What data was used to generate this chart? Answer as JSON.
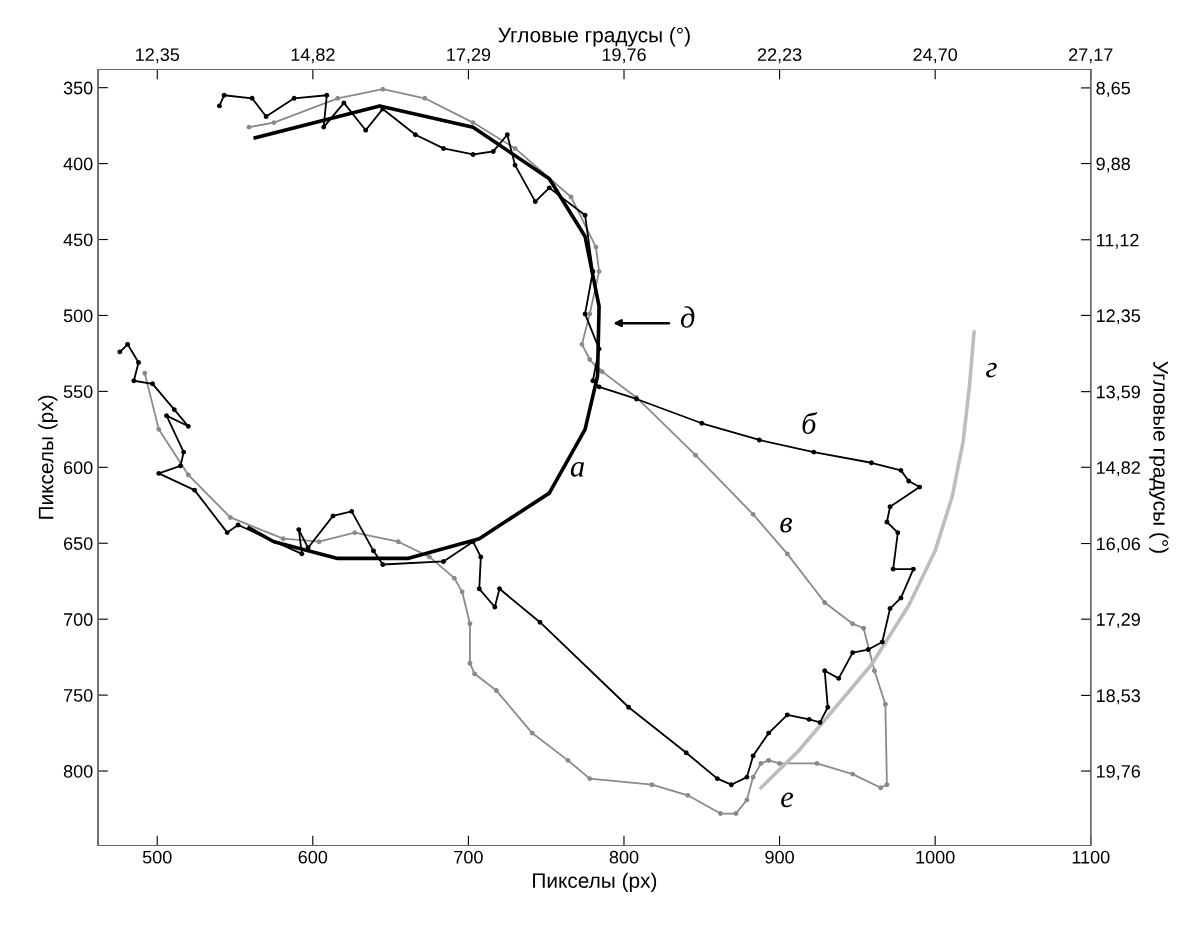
{
  "chart_data": {
    "type": "line",
    "xlabel": "Пикселы (px)",
    "ylabel": "Пикселы (px)",
    "x2label": "Угловые градусы (°)",
    "y2label": "Угловые градусы (°)",
    "xlim": [
      462,
      1100
    ],
    "xticks": [
      500,
      600,
      700,
      800,
      900,
      1000,
      1100
    ],
    "ylim": [
      849,
      338
    ],
    "yticks": [
      350,
      400,
      450,
      500,
      550,
      600,
      650,
      700,
      750,
      800
    ],
    "x2lim": [
      11.41,
      27.17
    ],
    "x2ticks": [
      {
        "value": 12.35,
        "label": "12,35"
      },
      {
        "value": 14.82,
        "label": "14,82"
      },
      {
        "value": 17.29,
        "label": "17,29"
      },
      {
        "value": 19.76,
        "label": "19,76"
      },
      {
        "value": 22.23,
        "label": "22,23"
      },
      {
        "value": 24.7,
        "label": "24,70"
      },
      {
        "value": 27.17,
        "label": "27,17"
      }
    ],
    "y2lim": [
      20.97,
      8.35
    ],
    "y2ticks": [
      {
        "value": 8.65,
        "label": "8,65"
      },
      {
        "value": 9.88,
        "label": "9,88"
      },
      {
        "value": 11.12,
        "label": "11,12"
      },
      {
        "value": 12.35,
        "label": "12,35"
      },
      {
        "value": 13.59,
        "label": "13,59"
      },
      {
        "value": 14.82,
        "label": "14,82"
      },
      {
        "value": 16.06,
        "label": "16,06"
      },
      {
        "value": 17.29,
        "label": "17,29"
      },
      {
        "value": 18.53,
        "label": "18,53"
      },
      {
        "value": 19.76,
        "label": "19,76"
      }
    ],
    "grid": false,
    "legend": false,
    "annotations": [
      "а",
      "б",
      "в",
      "г",
      "д",
      "е"
    ],
    "series": [
      {
        "color": "#8a8a8a",
        "marker": "circle",
        "x": [
          559,
          575,
          616,
          645,
          672,
          703,
          730,
          766,
          782,
          784,
          778,
          773,
          778,
          784,
          786,
          808,
          846,
          883,
          905,
          929,
          947,
          954,
          961,
          968,
          969,
          965,
          947,
          924,
          900,
          893
        ],
        "values": [
          376,
          373,
          357,
          351,
          357,
          373,
          390,
          422,
          455,
          471,
          499,
          519,
          529,
          536,
          537,
          554,
          592,
          631,
          657,
          689,
          703,
          706,
          734,
          756,
          809,
          811,
          802,
          795,
          795,
          793
        ]
      },
      {
        "color": "#8a8a8a",
        "marker": "circle",
        "x": [
          492,
          501,
          520,
          547,
          581,
          604,
          627,
          655,
          675,
          691,
          696,
          701,
          701,
          704,
          718,
          741,
          764,
          778,
          818,
          841,
          862,
          872,
          879,
          883,
          888,
          893
        ],
        "values": [
          538,
          575,
          605,
          633,
          647,
          649,
          643,
          649,
          659,
          673,
          682,
          703,
          729,
          736,
          747,
          775,
          793,
          805,
          809,
          816,
          828,
          828,
          819,
          804,
          795,
          793
        ]
      },
      {
        "color": "#bdbdbd",
        "marker": "none",
        "x": [
          888,
          912,
          936,
          959,
          983,
          1000,
          1011,
          1018,
          1022,
          1025
        ],
        "values": [
          811,
          787,
          758,
          730,
          691,
          655,
          619,
          583,
          547,
          511
        ]
      },
      {
        "color": "#000000",
        "marker": "none",
        "x": [
          563,
          643,
          703,
          752,
          775,
          784,
          783,
          775,
          752,
          707,
          661,
          616,
          575,
          559
        ],
        "values": [
          383,
          362,
          376,
          410,
          448,
          494,
          540,
          575,
          617,
          647,
          660,
          660,
          649,
          640
        ]
      },
      {
        "color": "#000000",
        "marker": "circle",
        "x": [
          540,
          543,
          561,
          570,
          588,
          609,
          607,
          620,
          634,
          645,
          666,
          684,
          703,
          716,
          725,
          730,
          743,
          752,
          775,
          780,
          775,
          784,
          780,
          784,
          808,
          850,
          887,
          922,
          959,
          978,
          983,
          990,
          971,
          969,
          976,
          973,
          986,
          978,
          971,
          966,
          957,
          947,
          938,
          929,
          931,
          926,
          919,
          905,
          893,
          883,
          879,
          869,
          860,
          840,
          803,
          746,
          720,
          717,
          707,
          708,
          703,
          684,
          645,
          639,
          625,
          613,
          597,
          591,
          593,
          552,
          545,
          524,
          501,
          515,
          517,
          506,
          520,
          511,
          497,
          485,
          488,
          481,
          476
        ],
        "values": [
          362,
          355,
          357,
          369,
          357,
          355,
          376,
          360,
          378,
          364,
          381,
          390,
          394,
          392,
          381,
          401,
          425,
          416,
          434,
          471,
          499,
          522,
          543,
          547,
          555,
          571,
          582,
          590,
          597,
          602,
          609,
          613,
          626,
          636,
          643,
          667,
          667,
          686,
          693,
          715,
          720,
          722,
          739,
          734,
          758,
          768,
          766,
          763,
          775,
          790,
          804,
          809,
          805,
          788,
          758,
          702,
          680,
          692,
          680,
          659,
          649,
          662,
          664,
          655,
          629,
          632,
          653,
          641,
          657,
          638,
          643,
          615,
          604,
          599,
          590,
          566,
          573,
          562,
          545,
          543,
          531,
          519,
          524
        ]
      }
    ]
  }
}
